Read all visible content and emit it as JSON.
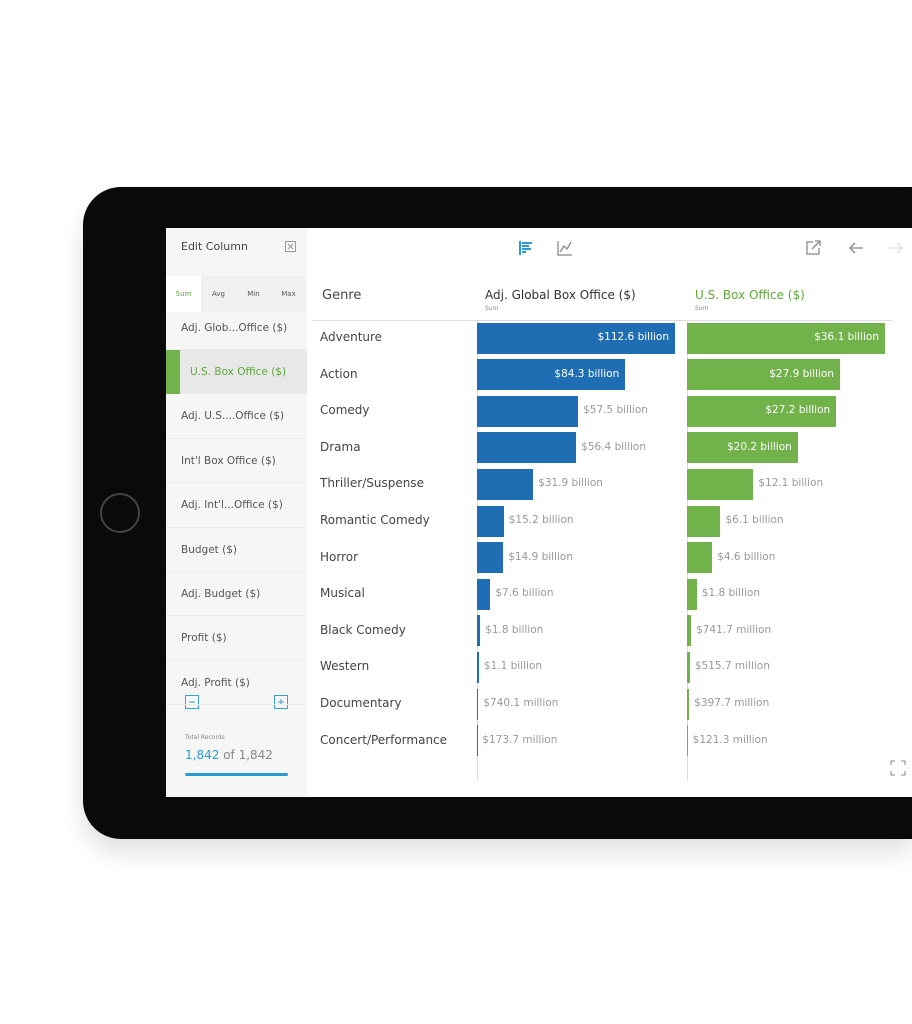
{
  "sidebar": {
    "title": "Edit Column",
    "tabs": [
      "Sum",
      "Avg",
      "Min",
      "Max"
    ],
    "active_tab": 0,
    "items": [
      "Adj. Glob...Office ($)",
      "U.S. Box Office ($)",
      "Adj. U.S....Office ($)",
      "Int'l Box Office ($)",
      "Adj. Int'l...Office ($)",
      "Budget ($)",
      "Adj. Budget ($)",
      "Profit ($)",
      "Adj. Profit ($)"
    ],
    "selected": 1,
    "total_label": "Total Records",
    "records_shown": "1,842",
    "records_total": "of 1,842"
  },
  "table": {
    "genre_header": "Genre",
    "genres": [
      "Adventure",
      "Action",
      "Comedy",
      "Drama",
      "Thriller/Suspense",
      "Romantic Comedy",
      "Horror",
      "Musical",
      "Black Comedy",
      "Western",
      "Documentary",
      "Concert/Performance"
    ],
    "columns": [
      {
        "name": "Adj. Global Box Office ($)",
        "sub": "Sum",
        "color": "#1f6eb4",
        "header_color": "#333333",
        "values": [
          112.6,
          84.3,
          57.5,
          56.4,
          31.9,
          15.2,
          14.9,
          7.6,
          1.8,
          1.1,
          0.7401,
          0.1737
        ],
        "value_labels": [
          "$112.6 billion",
          "$84.3 billion",
          "$57.5 billion",
          "$56.4 billion",
          "$31.9 billion",
          "$15.2 billion",
          "$14.9 billion",
          "$7.6 billion",
          "$1.8 billion",
          "$1.1 billion",
          "$740.1 million",
          "$173.7 million"
        ]
      },
      {
        "name": "U.S. Box Office ($)",
        "sub": "Sum",
        "color": "#72b24a",
        "header_color": "#5fa83a",
        "values": [
          36.1,
          27.9,
          27.2,
          20.2,
          12.1,
          6.1,
          4.6,
          1.8,
          0.7417,
          0.5157,
          0.3977,
          0.1213
        ],
        "value_labels": [
          "$36.1 billion",
          "$27.9 billion",
          "$27.2 billion",
          "$20.2 billion",
          "$12.1 billion",
          "$6.1 billion",
          "$4.6 billion",
          "$1.8 billion",
          "$741.7 million",
          "$515.7 million",
          "$397.7 million",
          "$121.3 million"
        ]
      }
    ]
  }
}
